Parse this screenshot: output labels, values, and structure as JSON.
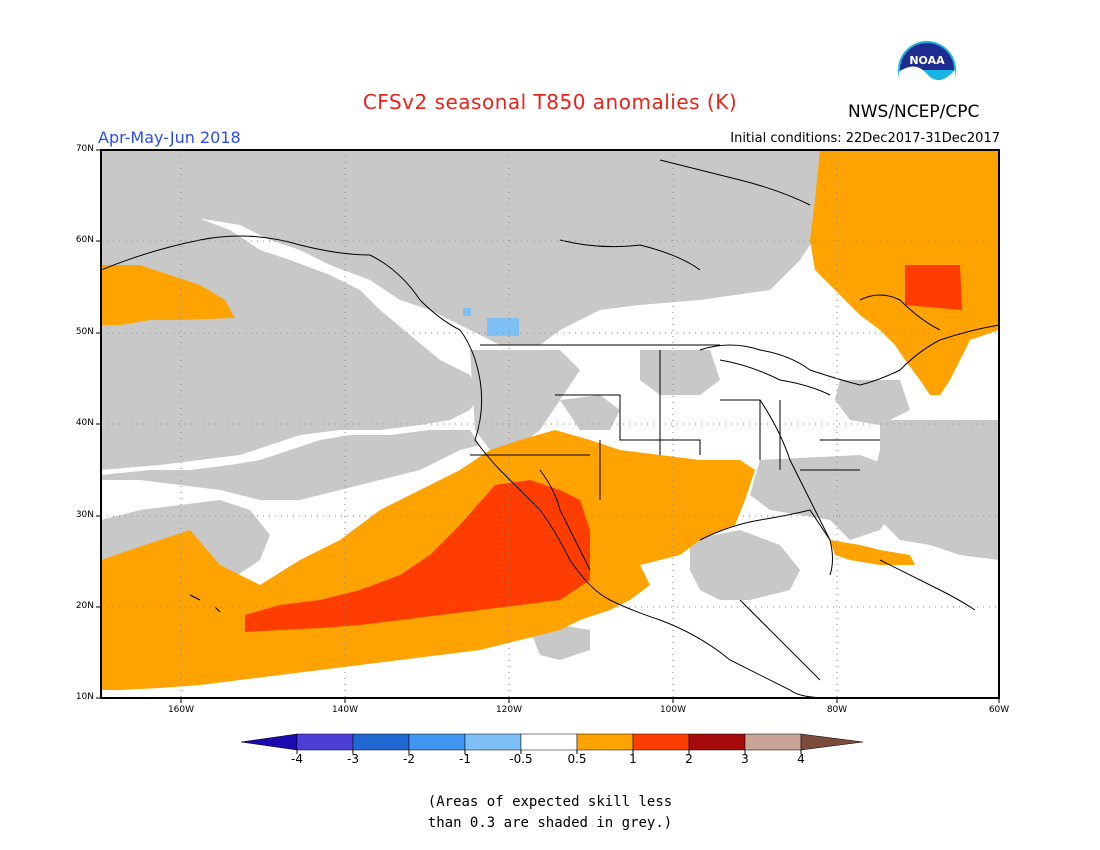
{
  "header": {
    "title": "CFSv2 seasonal T850 anomalies (K)",
    "season": "Apr-May-Jun 2018",
    "initial_conditions": "Initial conditions: 22Dec2017-31Dec2017",
    "agency": "NWS/NCEP/CPC",
    "logo_text": "NOAA"
  },
  "axes": {
    "lat_labels": [
      "70N",
      "60N",
      "50N",
      "40N",
      "30N",
      "20N",
      "10N"
    ],
    "lon_labels": [
      "160W",
      "140W",
      "120W",
      "100W",
      "80W",
      "60W"
    ]
  },
  "colorbar": {
    "labels": [
      "-4",
      "-3",
      "-2",
      "-1",
      "-0.5",
      "0.5",
      "1",
      "2",
      "3",
      "4"
    ],
    "colors": [
      "#1c0bb0",
      "#4b3fd6",
      "#1f67d1",
      "#3f95ef",
      "#7ec0f5",
      "#ffffff",
      "#ffa300",
      "#ff3d00",
      "#a50b0b",
      "#c9a394",
      "#7a4a3a"
    ]
  },
  "note": {
    "line1": "(Areas of expected skill less",
    "line2": "than 0.3 are shaded in grey.)"
  },
  "map_colors": {
    "low_skill_grey": "#c8c8c8",
    "anom_0_5_to_1": "#ffa300",
    "anom_1_to_2": "#ff3d00",
    "anom_neg_1_to_neg_0_5": "#7ec0f5"
  }
}
